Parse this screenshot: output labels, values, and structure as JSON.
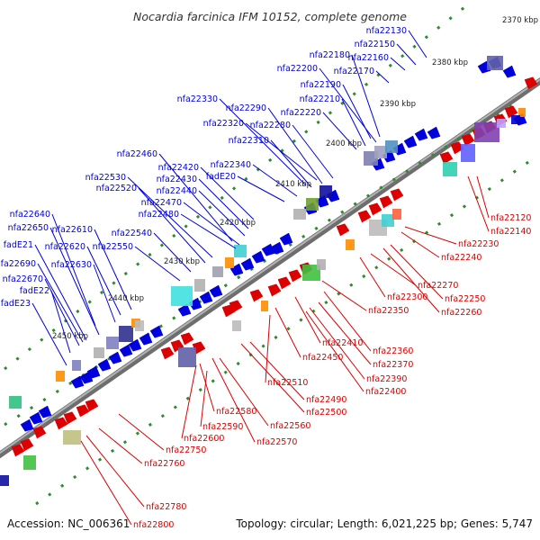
{
  "title": "Nocardia farcinica IFM 10152, complete genome",
  "footer": {
    "accession": "Accession: NC_006361",
    "summary": "Topology: circular; Length: 6,021,225 bp; Genes: 5,747"
  },
  "colors": {
    "forward": "#0000dd",
    "reverse": "#dd0000",
    "backbone": "#808080",
    "tick": "#2e8b2e"
  },
  "kbp_labels": [
    "2370 kbp",
    "2380 kbp",
    "2390 kbp",
    "2400 kbp",
    "2410 kbp",
    "2420 kbp",
    "2430 kbp",
    "2440 kbp",
    "2450 kbp"
  ],
  "forward_genes": [
    "nfa22130",
    "nfa22150",
    "nfa22160",
    "nfa22170",
    "nfa22180",
    "nfa22190",
    "nfa22200",
    "nfa22210",
    "nfa22220",
    "nfa22280",
    "nfa22290",
    "nfa22310",
    "nfa22320",
    "nfa22330",
    "nfa22340",
    "fadE20",
    "nfa22420",
    "nfa22430",
    "nfa22440",
    "nfa22460",
    "nfa22470",
    "nfa22480",
    "nfa22520",
    "nfa22530",
    "nfa22540",
    "nfa22550",
    "nfa22610",
    "nfa22620",
    "nfa22630",
    "nfa22640",
    "nfa22650",
    "nfa22670",
    "nfa22690",
    "fadE21",
    "fadE22",
    "fadE23"
  ],
  "reverse_genes": [
    "nfa22120",
    "nfa22140",
    "nfa22230",
    "nfa22240",
    "nfa22250",
    "nfa22260",
    "nfa22270",
    "nfa22300",
    "nfa22350",
    "nfa22360",
    "nfa22370",
    "nfa22390",
    "nfa22400",
    "nfa22410",
    "nfa22450",
    "nfa22490",
    "nfa22500",
    "nfa22510",
    "nfa22560",
    "nfa22570",
    "nfa22580",
    "nfa22590",
    "nfa22600",
    "nfa22750",
    "nfa22760",
    "nfa22780",
    "nfa22800"
  ]
}
